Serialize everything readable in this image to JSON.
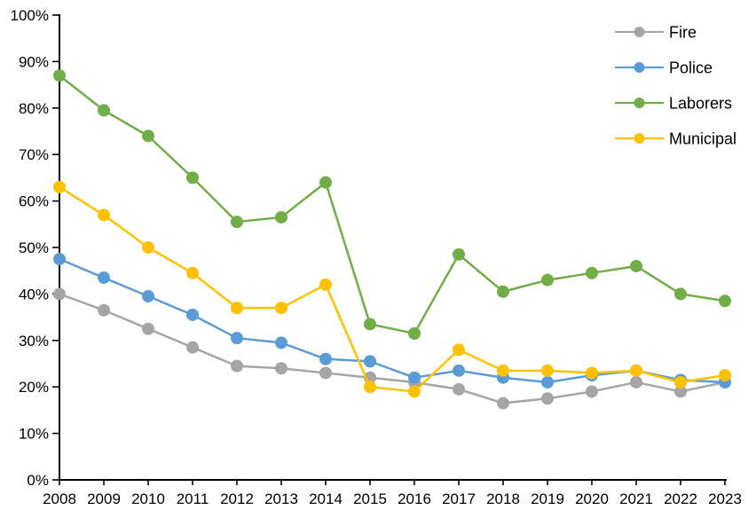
{
  "chart_data": {
    "type": "line",
    "title": "",
    "xlabel": "",
    "ylabel": "",
    "x": [
      2008,
      2009,
      2010,
      2011,
      2012,
      2013,
      2014,
      2015,
      2016,
      2017,
      2018,
      2019,
      2020,
      2021,
      2022,
      2023
    ],
    "series": [
      {
        "name": "Fire",
        "color": "#A5A5A5",
        "values": [
          40,
          36.5,
          32.5,
          28.5,
          24.5,
          24,
          23,
          22,
          21,
          19.5,
          16.5,
          17.5,
          19,
          21,
          19,
          21
        ]
      },
      {
        "name": "Police",
        "color": "#5B9BD5",
        "values": [
          47.5,
          43.5,
          39.5,
          35.5,
          30.5,
          29.5,
          26,
          25.5,
          22,
          23.5,
          22,
          21,
          22.5,
          23.5,
          21.5,
          21
        ]
      },
      {
        "name": "Laborers",
        "color": "#70AD47",
        "values": [
          87,
          79.5,
          74,
          65,
          55.5,
          56.5,
          64,
          33.5,
          31.5,
          48.5,
          40.5,
          43,
          44.5,
          46,
          40,
          38.5
        ]
      },
      {
        "name": "Municipal",
        "color": "#FFC000",
        "values": [
          63,
          57,
          50,
          44.5,
          37,
          37,
          42,
          20,
          19,
          28,
          23.5,
          23.5,
          23,
          23.5,
          21,
          22.5
        ]
      }
    ],
    "ylim": [
      0,
      100
    ],
    "y_tick_step": 10,
    "y_tick_suffix": "%",
    "grid": false,
    "legend_position": "top-right",
    "axis_color": "#000000",
    "background_color": "#FFFFFF"
  }
}
